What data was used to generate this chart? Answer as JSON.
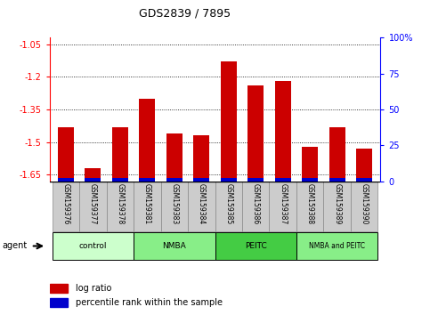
{
  "title": "GDS2839 / 7895",
  "samples": [
    "GSM159376",
    "GSM159377",
    "GSM159378",
    "GSM159381",
    "GSM159383",
    "GSM159384",
    "GSM159385",
    "GSM159386",
    "GSM159387",
    "GSM159388",
    "GSM159389",
    "GSM159390"
  ],
  "log_ratio": [
    -1.43,
    -1.62,
    -1.43,
    -1.3,
    -1.46,
    -1.47,
    -1.13,
    -1.24,
    -1.22,
    -1.52,
    -1.43,
    -1.53
  ],
  "percentile_rank": [
    2,
    2,
    2,
    2,
    2,
    2,
    2,
    2,
    2,
    2,
    2,
    2
  ],
  "bar_color": "#cc0000",
  "pct_color": "#0000cc",
  "ylim_left": [
    -1.68,
    -1.02
  ],
  "ylim_right": [
    0,
    100
  ],
  "yticks_left": [
    -1.65,
    -1.5,
    -1.35,
    -1.2,
    -1.05
  ],
  "yticks_right": [
    0,
    25,
    50,
    75,
    100
  ],
  "ytick_labels_left": [
    "-1.65",
    "-1.5",
    "-1.35",
    "-1.2",
    "-1.05"
  ],
  "ytick_labels_right": [
    "0",
    "25",
    "50",
    "75",
    "100%"
  ],
  "groups": [
    {
      "label": "control",
      "indices": [
        0,
        1,
        2
      ],
      "color": "#ccffcc"
    },
    {
      "label": "NMBA",
      "indices": [
        3,
        4,
        5
      ],
      "color": "#88ee88"
    },
    {
      "label": "PEITC",
      "indices": [
        6,
        7,
        8
      ],
      "color": "#44cc44"
    },
    {
      "label": "NMBA and PEITC",
      "indices": [
        9,
        10,
        11
      ],
      "color": "#88ee88"
    }
  ],
  "bar_width": 0.6,
  "tick_area_color": "#cccccc",
  "grid_color": "#000000"
}
